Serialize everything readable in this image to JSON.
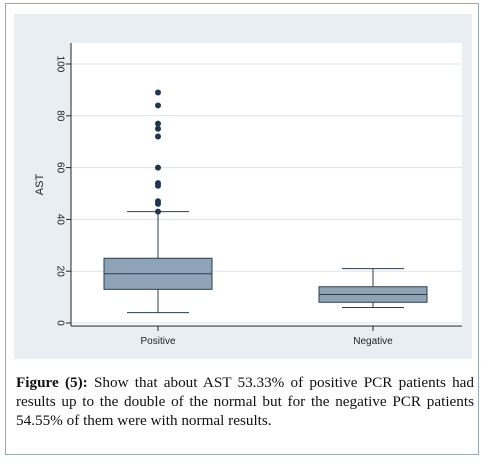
{
  "caption": {
    "label": "Figure (5):",
    "text": " Show that about AST 53.33% of positive PCR patients had results up to the double of the normal but for the negative PCR patients 54.55% of them were with normal results."
  },
  "colors": {
    "panel_bg": "#e9eef2",
    "plot_bg": "#ffffff",
    "box_fill": "#8ea3b6",
    "box_stroke": "#2e3d4a",
    "outlier": "#1f3550",
    "grid": "#dbe3ea"
  },
  "chart_data": {
    "type": "box",
    "title": "",
    "xlabel": "",
    "ylabel": "AST",
    "ylim": [
      0,
      100
    ],
    "yticks": [
      0,
      20,
      40,
      60,
      80,
      100
    ],
    "grid": true,
    "categories": [
      "Positive",
      "Negative"
    ],
    "boxes": [
      {
        "name": "Positive",
        "whisker_low": 4,
        "q1": 13,
        "median": 19,
        "q3": 25,
        "whisker_high": 43,
        "outliers": [
          43,
          46,
          47,
          53,
          54,
          60,
          72,
          75,
          77,
          84,
          89
        ]
      },
      {
        "name": "Negative",
        "whisker_low": 6,
        "q1": 8,
        "median": 11,
        "q3": 14,
        "whisker_high": 21,
        "outliers": []
      }
    ]
  }
}
